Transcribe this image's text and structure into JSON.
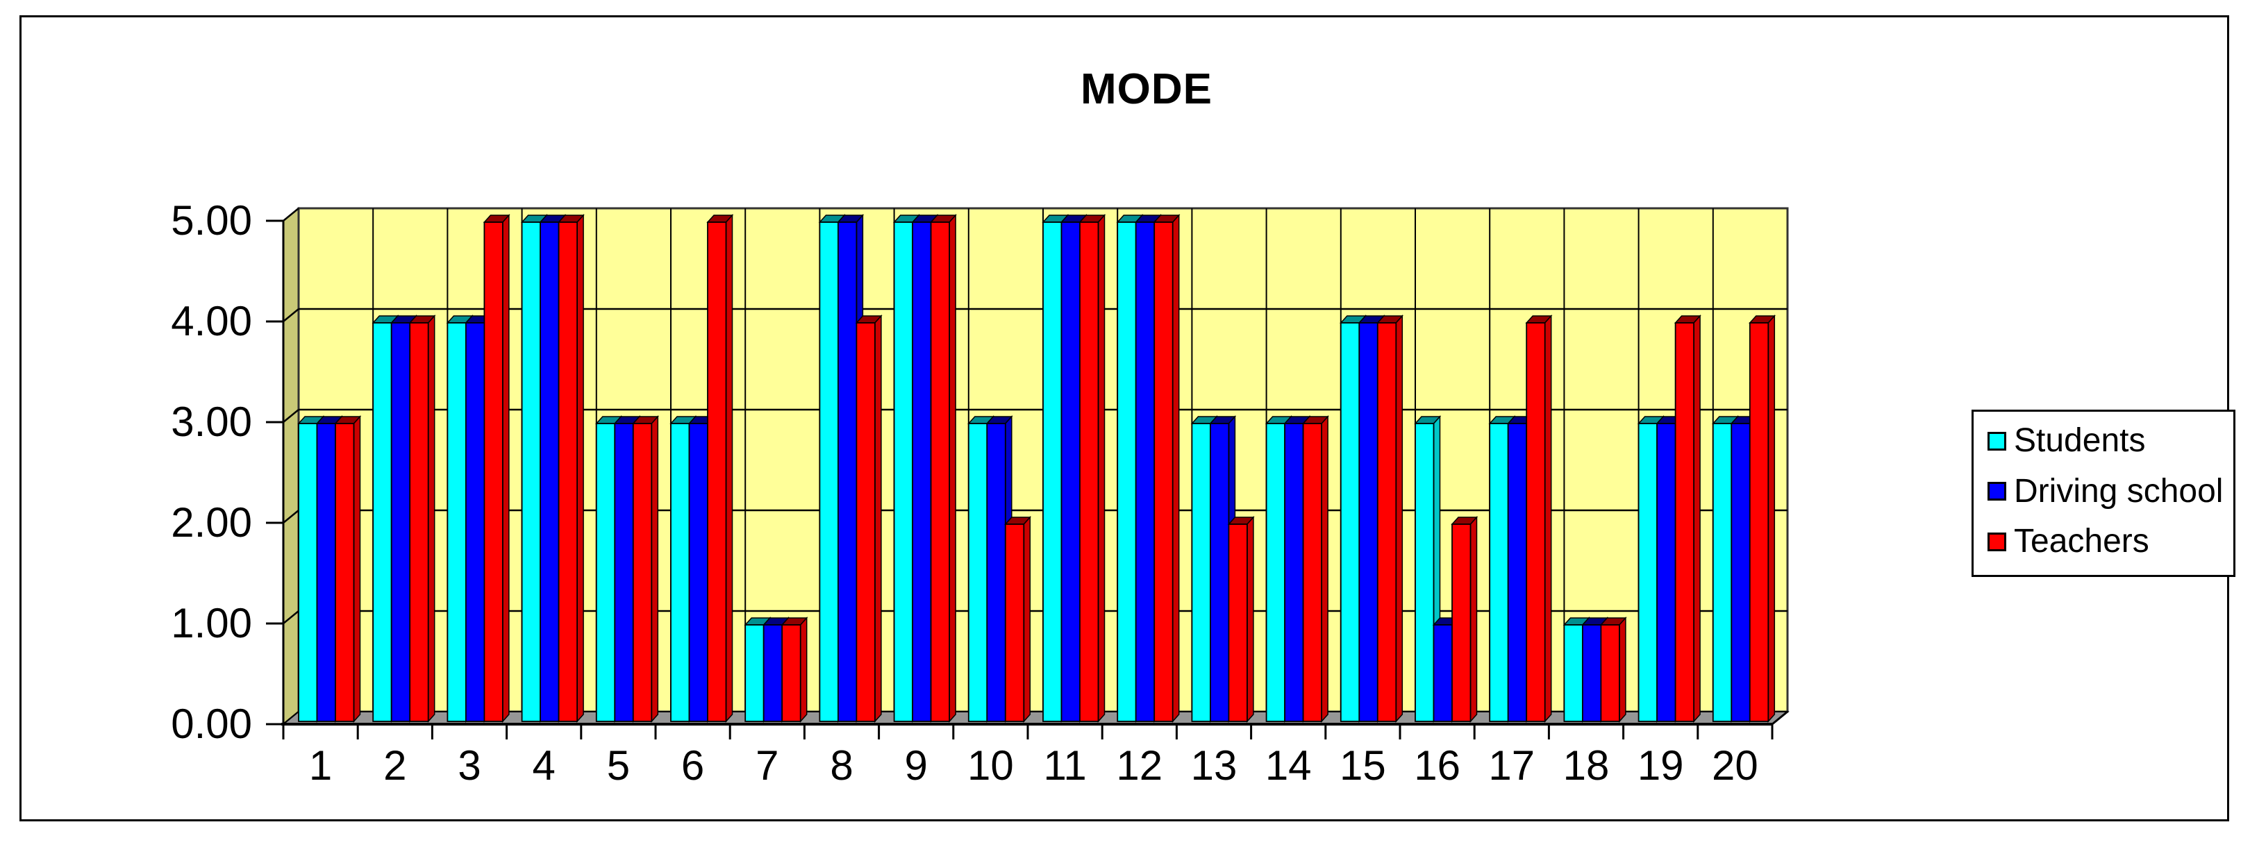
{
  "frame": {
    "background": "#ffffff",
    "border_color": "#000000"
  },
  "chart_data": {
    "type": "bar",
    "is_3d": true,
    "title": "MODE",
    "xlabel": "",
    "ylabel": "",
    "categories": [
      "1",
      "2",
      "3",
      "4",
      "5",
      "6",
      "7",
      "8",
      "9",
      "10",
      "11",
      "12",
      "13",
      "14",
      "15",
      "16",
      "17",
      "18",
      "19",
      "20"
    ],
    "y_tick_labels": [
      "0.00",
      "1.00",
      "2.00",
      "3.00",
      "4.00",
      "5.00"
    ],
    "ylim": [
      0,
      5
    ],
    "y_step": 1,
    "grid": true,
    "legend_position": "right",
    "series": [
      {
        "name": "Students",
        "color": "#00FFFF",
        "side_color": "#00C8C8",
        "top_color": "#008F8F",
        "values": [
          3,
          4,
          4,
          5,
          3,
          3,
          1,
          5,
          5,
          3,
          5,
          5,
          3,
          3,
          4,
          3,
          3,
          1,
          3,
          3
        ]
      },
      {
        "name": "Driving school",
        "color": "#0000FF",
        "side_color": "#0000C8",
        "top_color": "#000080",
        "values": [
          3,
          4,
          4,
          5,
          3,
          3,
          1,
          5,
          5,
          3,
          5,
          5,
          3,
          3,
          4,
          1,
          3,
          1,
          3,
          3
        ]
      },
      {
        "name": "Teachers",
        "color": "#FF0000",
        "side_color": "#CC0000",
        "top_color": "#8F0000",
        "values": [
          3,
          4,
          5,
          5,
          3,
          5,
          1,
          4,
          5,
          2,
          5,
          5,
          2,
          3,
          4,
          2,
          4,
          1,
          4,
          4
        ]
      }
    ],
    "walls": {
      "back_wall_color": "#FFFF99",
      "side_wall_color": "#C9C977",
      "floor_color": "#969696",
      "grid_color": "#000000"
    }
  }
}
